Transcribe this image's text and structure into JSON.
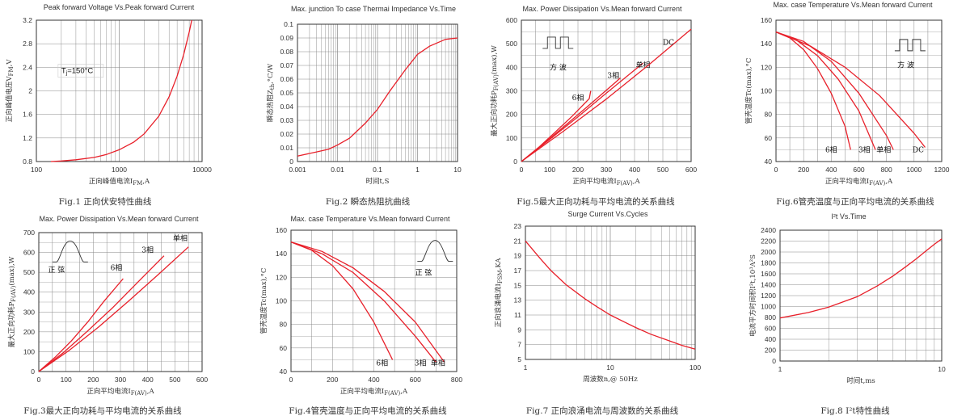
{
  "chart_data": [
    {
      "id": "fig1",
      "type": "line",
      "title": "Peak forward Voltage Vs.Peak forward Current",
      "xlabel": "正向峰值电流I",
      "xlabel_sub": "FM",
      "xlabel_tail": ",A",
      "ylabel": "正向峰值电压V",
      "ylabel_sub": "FM",
      "ylabel_tail": ",V",
      "xscale": "log",
      "xlim": [
        100,
        10000
      ],
      "ylim": [
        0.8,
        3.2
      ],
      "xticks": [
        {
          "v": 100,
          "t": "100"
        },
        {
          "v": 1000,
          "t": "1000"
        },
        {
          "v": 10000,
          "t": "10000"
        }
      ],
      "yticks": [
        {
          "v": 0.8,
          "t": "0.8"
        },
        {
          "v": 1.2,
          "t": "1.2"
        },
        {
          "v": 1.6,
          "t": "1.6"
        },
        {
          "v": 2,
          "t": "2"
        },
        {
          "v": 2.4,
          "t": "2.4"
        },
        {
          "v": 2.8,
          "t": "2.8"
        },
        {
          "v": 3.2,
          "t": "3.2"
        }
      ],
      "annotations": [
        {
          "text": "T",
          "sub": "j",
          "tail": "=150°C",
          "x": 200,
          "y": 2.3,
          "box": true
        }
      ],
      "series": [
        {
          "name": "Tj=150°C",
          "label": "",
          "x": [
            150,
            200,
            300,
            500,
            700,
            1000,
            1500,
            2000,
            3000,
            4000,
            5000,
            6000,
            7000,
            7500
          ],
          "y": [
            0.8,
            0.81,
            0.83,
            0.87,
            0.92,
            1.0,
            1.13,
            1.27,
            1.57,
            1.9,
            2.25,
            2.62,
            3.0,
            3.2
          ]
        }
      ],
      "caption": "Fig.1 正向伏安特性曲线"
    },
    {
      "id": "fig2",
      "type": "line",
      "title": "Max. junction To case Thermai Impedance Vs.Time",
      "xlabel": "时间t,S",
      "xlabel_sub": "",
      "xlabel_tail": "",
      "ylabel": "瞬态热阻Z",
      "ylabel_sub": "th",
      "ylabel_tail": ",°C/W",
      "xscale": "log",
      "xlim": [
        0.001,
        10
      ],
      "ylim": [
        0,
        0.1
      ],
      "xticks": [
        {
          "v": 0.001,
          "t": "0.001"
        },
        {
          "v": 0.01,
          "t": "0.01"
        },
        {
          "v": 0.1,
          "t": "0.1"
        },
        {
          "v": 1,
          "t": "1"
        },
        {
          "v": 10,
          "t": "10"
        }
      ],
      "yticks": [
        {
          "v": 0,
          "t": "0"
        },
        {
          "v": 0.01,
          "t": "0.01"
        },
        {
          "v": 0.02,
          "t": "0.02"
        },
        {
          "v": 0.03,
          "t": "0.03"
        },
        {
          "v": 0.04,
          "t": "0.04"
        },
        {
          "v": 0.05,
          "t": "0.05"
        },
        {
          "v": 0.06,
          "t": "0.06"
        },
        {
          "v": 0.07,
          "t": "0.07"
        },
        {
          "v": 0.08,
          "t": "0.08"
        },
        {
          "v": 0.09,
          "t": "0.09"
        },
        {
          "v": 0.1,
          "t": "0.1"
        }
      ],
      "annotations": [],
      "series": [
        {
          "name": "Zth",
          "label": "",
          "x": [
            0.001,
            0.003,
            0.006,
            0.01,
            0.02,
            0.05,
            0.1,
            0.2,
            0.5,
            1,
            2,
            5,
            10
          ],
          "y": [
            0.004,
            0.007,
            0.009,
            0.012,
            0.017,
            0.028,
            0.038,
            0.051,
            0.067,
            0.078,
            0.084,
            0.089,
            0.09
          ]
        }
      ],
      "caption": "Fig.2  瞬态热阻抗曲线"
    },
    {
      "id": "fig5",
      "type": "line",
      "title": "Max. Power Dissipation Vs.Mean forward Current",
      "xlabel": "正向平均电流I",
      "xlabel_sub": "F(AV)",
      "xlabel_tail": ",A",
      "ylabel": "最大正向功耗P",
      "ylabel_sub": "F(AV)",
      "ylabel_tail": "(max),W",
      "xscale": "linear",
      "xlim": [
        0,
        600
      ],
      "ylim": [
        0,
        600
      ],
      "xticks": [
        {
          "v": 0,
          "t": "0"
        },
        {
          "v": 100,
          "t": "100"
        },
        {
          "v": 200,
          "t": "200"
        },
        {
          "v": 300,
          "t": "300"
        },
        {
          "v": 400,
          "t": "400"
        },
        {
          "v": 500,
          "t": "500"
        },
        {
          "v": 600,
          "t": "600"
        }
      ],
      "yticks": [
        {
          "v": 0,
          "t": "0"
        },
        {
          "v": 100,
          "t": "100"
        },
        {
          "v": 200,
          "t": "200"
        },
        {
          "v": 300,
          "t": "300"
        },
        {
          "v": 400,
          "t": "400"
        },
        {
          "v": 500,
          "t": "500"
        },
        {
          "v": 600,
          "t": "600"
        }
      ],
      "annotations": [
        {
          "text": "方  波",
          "x": 130,
          "y": 390,
          "box": false
        }
      ],
      "wave": "square",
      "wave_pos": [
        75,
        535
      ],
      "series": [
        {
          "name": "6相",
          "label": "6相",
          "lx": 200,
          "ly": 260,
          "x": [
            0,
            60,
            120,
            180,
            240,
            245
          ],
          "y": [
            0,
            59,
            125,
            193,
            267,
            300
          ]
        },
        {
          "name": "3相",
          "label": "3相",
          "lx": 325,
          "ly": 355,
          "x": [
            0,
            80,
            160,
            240,
            320,
            350
          ],
          "y": [
            0,
            77,
            158,
            240,
            323,
            355
          ]
        },
        {
          "name": "单相",
          "label": "单相",
          "lx": 430,
          "ly": 400,
          "x": [
            0,
            100,
            200,
            300,
            400,
            430
          ],
          "y": [
            0,
            94,
            190,
            290,
            388,
            418
          ]
        },
        {
          "name": "DC",
          "label": "DC",
          "lx": 520,
          "ly": 495,
          "x": [
            0,
            150,
            300,
            450,
            600
          ],
          "y": [
            0,
            130,
            265,
            410,
            562
          ]
        }
      ],
      "caption": "Fig.5最大正向功耗与平均电流的关系曲线"
    },
    {
      "id": "fig6",
      "type": "line",
      "title": "Max. case Temperature Vs.Mean forward Current",
      "xlabel": "正向平均电流I",
      "xlabel_sub": "F(AV)",
      "xlabel_tail": ",A",
      "ylabel": "管壳温度Tc(max),°C",
      "ylabel_sub": "",
      "ylabel_tail": "",
      "xscale": "linear",
      "xlim": [
        0,
        1200
      ],
      "ylim": [
        40,
        160
      ],
      "xticks": [
        {
          "v": 0,
          "t": "0"
        },
        {
          "v": 200,
          "t": "200"
        },
        {
          "v": 400,
          "t": "400"
        },
        {
          "v": 600,
          "t": "600"
        },
        {
          "v": 800,
          "t": "800"
        },
        {
          "v": 1000,
          "t": "1000"
        },
        {
          "v": 1200,
          "t": "1200"
        }
      ],
      "yticks": [
        {
          "v": 40,
          "t": "40"
        },
        {
          "v": 60,
          "t": "60"
        },
        {
          "v": 80,
          "t": "80"
        },
        {
          "v": 100,
          "t": "100"
        },
        {
          "v": 120,
          "t": "120"
        },
        {
          "v": 140,
          "t": "140"
        },
        {
          "v": 160,
          "t": "160"
        }
      ],
      "annotations": [
        {
          "text": "方  波",
          "x": 940,
          "y": 120,
          "box": false
        }
      ],
      "wave": "square",
      "wave_pos": [
        860,
        145
      ],
      "series": [
        {
          "name": "6相",
          "label": "6相",
          "lx": 400,
          "ly": 48,
          "x": [
            0,
            100,
            200,
            300,
            400,
            500,
            540
          ],
          "y": [
            150,
            145,
            135,
            119,
            98,
            70,
            50
          ]
        },
        {
          "name": "3相",
          "label": "3相",
          "lx": 640,
          "ly": 48,
          "x": [
            0,
            150,
            300,
            450,
            600,
            720
          ],
          "y": [
            150,
            143,
            130,
            110,
            83,
            50
          ]
        },
        {
          "name": "单相",
          "label": "单相",
          "lx": 780,
          "ly": 48,
          "x": [
            0,
            200,
            400,
            600,
            800,
            850
          ],
          "y": [
            150,
            142,
            125,
            98,
            62,
            50
          ]
        },
        {
          "name": "DC",
          "label": "DC",
          "lx": 1030,
          "ly": 48,
          "x": [
            0,
            250,
            500,
            750,
            1000,
            1080
          ],
          "y": [
            150,
            138,
            120,
            96,
            64,
            52
          ]
        }
      ],
      "caption": "Fig.6管壳温度与正向平均电流的关系曲线"
    },
    {
      "id": "fig3",
      "type": "line",
      "title": "Max. Power Dissipation Vs.Mean forward Current",
      "xlabel": "正向平均电流I",
      "xlabel_sub": "F(AV)",
      "xlabel_tail": ",A",
      "ylabel": "最大正向功耗P",
      "ylabel_sub": "F(AV)",
      "ylabel_tail": "(max),W",
      "xscale": "linear",
      "xlim": [
        0,
        600
      ],
      "ylim": [
        0,
        700
      ],
      "xticks": [
        {
          "v": 0,
          "t": "0"
        },
        {
          "v": 100,
          "t": "100"
        },
        {
          "v": 200,
          "t": "200"
        },
        {
          "v": 300,
          "t": "300"
        },
        {
          "v": 400,
          "t": "400"
        },
        {
          "v": 500,
          "t": "500"
        },
        {
          "v": 600,
          "t": "600"
        }
      ],
      "yticks": [
        {
          "v": 0,
          "t": "0"
        },
        {
          "v": 100,
          "t": "100"
        },
        {
          "v": 200,
          "t": "200"
        },
        {
          "v": 300,
          "t": "300"
        },
        {
          "v": 400,
          "t": "400"
        },
        {
          "v": 500,
          "t": "500"
        },
        {
          "v": 600,
          "t": "600"
        },
        {
          "v": 700,
          "t": "700"
        }
      ],
      "annotations": [
        {
          "text": "正  弦",
          "x": 65,
          "y": 500,
          "box": false
        }
      ],
      "wave": "sine",
      "wave_pos": [
        50,
        650
      ],
      "series": [
        {
          "name": "6相",
          "label": "6相",
          "lx": 285,
          "ly": 510,
          "x": [
            0,
            60,
            120,
            180,
            240,
            310
          ],
          "y": [
            0,
            72,
            155,
            250,
            355,
            468
          ]
        },
        {
          "name": "3相",
          "label": "3相",
          "lx": 400,
          "ly": 600,
          "x": [
            0,
            90,
            180,
            270,
            360,
            460
          ],
          "y": [
            0,
            95,
            205,
            320,
            445,
            583
          ]
        },
        {
          "name": "单相",
          "label": "单相",
          "lx": 520,
          "ly": 660,
          "x": [
            0,
            110,
            220,
            330,
            440,
            550
          ],
          "y": [
            0,
            105,
            225,
            355,
            490,
            628
          ]
        }
      ],
      "caption": "Fig.3最大正向功耗与平均电流的关系曲线"
    },
    {
      "id": "fig4",
      "type": "line",
      "title": "Max. case Temperature Vs.Mean forward Current",
      "xlabel": "正向平均电流I",
      "xlabel_sub": "F(AV)",
      "xlabel_tail": ",A",
      "ylabel": "管壳温度Tc(max),°C",
      "ylabel_sub": "",
      "ylabel_tail": "",
      "xscale": "linear",
      "xlim": [
        0,
        800
      ],
      "ylim": [
        40,
        160
      ],
      "xticks": [
        {
          "v": 0,
          "t": "0"
        },
        {
          "v": 200,
          "t": "200"
        },
        {
          "v": 400,
          "t": "400"
        },
        {
          "v": 600,
          "t": "600"
        },
        {
          "v": 800,
          "t": "800"
        }
      ],
      "yticks": [
        {
          "v": 40,
          "t": "40"
        },
        {
          "v": 60,
          "t": "60"
        },
        {
          "v": 80,
          "t": "80"
        },
        {
          "v": 100,
          "t": "100"
        },
        {
          "v": 120,
          "t": "120"
        },
        {
          "v": 140,
          "t": "140"
        },
        {
          "v": 160,
          "t": "160"
        }
      ],
      "annotations": [
        {
          "text": "正  弦",
          "x": 640,
          "y": 122,
          "box": false
        }
      ],
      "wave": "sine",
      "wave_pos": [
        610,
        150
      ],
      "series": [
        {
          "name": "6相",
          "label": "6相",
          "lx": 440,
          "ly": 45,
          "x": [
            0,
            100,
            200,
            300,
            400,
            490
          ],
          "y": [
            150,
            143,
            130,
            110,
            82,
            50
          ]
        },
        {
          "name": "3相",
          "label": "3相",
          "lx": 625,
          "ly": 45,
          "x": [
            0,
            150,
            300,
            450,
            600,
            700
          ],
          "y": [
            150,
            140,
            124,
            100,
            70,
            48
          ]
        },
        {
          "name": "单相",
          "label": "单相",
          "lx": 710,
          "ly": 45,
          "x": [
            0,
            150,
            300,
            450,
            600,
            740
          ],
          "y": [
            150,
            142,
            128,
            108,
            82,
            48
          ]
        }
      ],
      "caption": "Fig.4管壳温度与正向平均电流的关系曲线"
    },
    {
      "id": "fig7",
      "type": "line",
      "title": "Surge Current Vs.Cycles",
      "xlabel": "周波数n,@ 50Hz",
      "xlabel_sub": "",
      "xlabel_tail": "",
      "ylabel": "正向浪涌电流I",
      "ylabel_sub": "FSM",
      "ylabel_tail": ",KA",
      "xscale": "log",
      "xlim": [
        1,
        100
      ],
      "ylim": [
        5,
        23
      ],
      "xticks": [
        {
          "v": 1,
          "t": "1"
        },
        {
          "v": 10,
          "t": "10"
        },
        {
          "v": 100,
          "t": "100"
        }
      ],
      "yticks": [
        {
          "v": 5,
          "t": "5"
        },
        {
          "v": 7,
          "t": "7"
        },
        {
          "v": 9,
          "t": "9"
        },
        {
          "v": 11,
          "t": "11"
        },
        {
          "v": 13,
          "t": "13"
        },
        {
          "v": 15,
          "t": "15"
        },
        {
          "v": 17,
          "t": "17"
        },
        {
          "v": 19,
          "t": "19"
        },
        {
          "v": 21,
          "t": "21"
        },
        {
          "v": 23,
          "t": "23"
        }
      ],
      "annotations": [],
      "series": [
        {
          "name": "IFSM",
          "label": "",
          "x": [
            1,
            1.5,
            2,
            3,
            5,
            7,
            10,
            15,
            20,
            30,
            50,
            70,
            100
          ],
          "y": [
            21,
            18.6,
            17,
            15.1,
            13.2,
            12.1,
            11.0,
            10.0,
            9.3,
            8.4,
            7.5,
            6.9,
            6.4
          ]
        }
      ],
      "caption": "Fig.7 正向浪涌电流与周波数的关系曲线"
    },
    {
      "id": "fig8",
      "type": "line",
      "title": "I²t  Vs.Time",
      "xlabel": "时间t,ms",
      "xlabel_sub": "",
      "xlabel_tail": "",
      "ylabel": "电流平方时间积I²t,10³A²S",
      "ylabel_sub": "",
      "ylabel_tail": "",
      "xscale": "log",
      "xlim": [
        1,
        10
      ],
      "ylim": [
        0,
        2400
      ],
      "xticks": [
        {
          "v": 1,
          "t": "1"
        },
        {
          "v": 10,
          "t": "10"
        }
      ],
      "yticks": [
        {
          "v": 0,
          "t": "0"
        },
        {
          "v": 200,
          "t": "200"
        },
        {
          "v": 400,
          "t": "400"
        },
        {
          "v": 600,
          "t": "600"
        },
        {
          "v": 800,
          "t": "800"
        },
        {
          "v": 1000,
          "t": "1000"
        },
        {
          "v": 1200,
          "t": "1200"
        },
        {
          "v": 1400,
          "t": "1400"
        },
        {
          "v": 1600,
          "t": "1600"
        },
        {
          "v": 1800,
          "t": "1800"
        },
        {
          "v": 2000,
          "t": "2000"
        },
        {
          "v": 2200,
          "t": "2200"
        },
        {
          "v": 2400,
          "t": "2400"
        }
      ],
      "annotations": [],
      "series": [
        {
          "name": "I2t",
          "label": "",
          "x": [
            1,
            1.5,
            2,
            3,
            4,
            5,
            6,
            7,
            8,
            9,
            10
          ],
          "y": [
            790,
            890,
            990,
            1180,
            1380,
            1560,
            1730,
            1880,
            2020,
            2140,
            2240
          ]
        }
      ],
      "caption": "Fig.8 I²t特性曲线"
    }
  ],
  "colors": {
    "curve": "#e8202a",
    "axis": "#333333",
    "grid": "#888888",
    "text": "#333333"
  }
}
